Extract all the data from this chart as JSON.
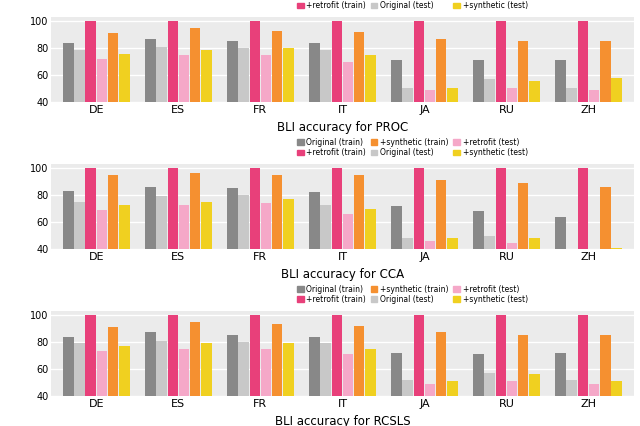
{
  "languages": [
    "DE",
    "ES",
    "FR",
    "IT",
    "JA",
    "RU",
    "ZH"
  ],
  "subplot_titles": [
    "BLI accuracy for PROC",
    "BLI accuracy for CCA",
    "BLI accuracy for RCSLS"
  ],
  "colors": {
    "orig_train": "#888888",
    "orig_test": "#c8c8c8",
    "retro_train": "#e8407a",
    "retro_test": "#f5a8c8",
    "synth_train": "#f59030",
    "synth_test": "#f0d020"
  },
  "legend_labels": [
    "Original (train)",
    "+retrofit (train)",
    "+synthetic (train)",
    "Original (test)",
    "+retrofit (test)",
    "+synthetic (test)"
  ],
  "ylim": [
    40,
    103
  ],
  "yticks": [
    40,
    60,
    80,
    100
  ],
  "data": {
    "PROC": {
      "orig_train": [
        84,
        87,
        85,
        84,
        71,
        71,
        71
      ],
      "orig_test": [
        79,
        81,
        80,
        79,
        51,
        57,
        51
      ],
      "retro_train": [
        100,
        100,
        100,
        100,
        100,
        100,
        100
      ],
      "retro_test": [
        72,
        75,
        75,
        70,
        49,
        51,
        49
      ],
      "synth_train": [
        91,
        95,
        93,
        92,
        87,
        85,
        85
      ],
      "synth_test": [
        76,
        79,
        80,
        75,
        51,
        56,
        58
      ]
    },
    "CCA": {
      "orig_train": [
        83,
        86,
        85,
        82,
        72,
        68,
        64
      ],
      "orig_test": [
        75,
        79,
        80,
        73,
        48,
        50,
        40
      ],
      "retro_train": [
        100,
        100,
        100,
        100,
        100,
        100,
        100
      ],
      "retro_test": [
        69,
        73,
        74,
        66,
        46,
        45,
        40
      ],
      "synth_train": [
        95,
        96,
        95,
        95,
        91,
        89,
        86
      ],
      "synth_test": [
        73,
        75,
        77,
        70,
        48,
        48,
        41
      ]
    },
    "RCSLS": {
      "orig_train": [
        84,
        87,
        85,
        84,
        72,
        71,
        72
      ],
      "orig_test": [
        79,
        81,
        80,
        79,
        52,
        57,
        52
      ],
      "retro_train": [
        100,
        100,
        100,
        100,
        100,
        100,
        100
      ],
      "retro_test": [
        73,
        75,
        75,
        71,
        49,
        51,
        49
      ],
      "synth_train": [
        91,
        95,
        93,
        92,
        87,
        85,
        85
      ],
      "synth_test": [
        77,
        79,
        79,
        75,
        51,
        56,
        51
      ]
    }
  }
}
